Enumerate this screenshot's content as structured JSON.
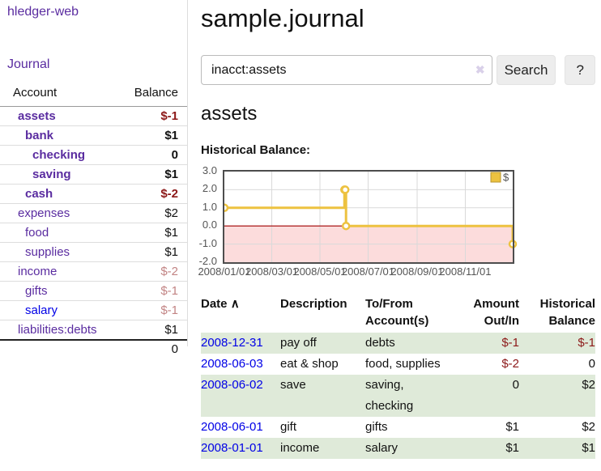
{
  "app": {
    "title": "hledger-web"
  },
  "sidebar": {
    "journal_label": "Journal",
    "accounts_table": {
      "headers": {
        "account": "Account",
        "balance": "Balance"
      },
      "rows": [
        {
          "name": "assets",
          "level": 1,
          "balance": "$-1",
          "matched": true
        },
        {
          "name": "bank",
          "level": 2,
          "balance": "$1",
          "matched": true
        },
        {
          "name": "checking",
          "level": 3,
          "balance": "0",
          "matched": true
        },
        {
          "name": "saving",
          "level": 3,
          "balance": "$1",
          "matched": true
        },
        {
          "name": "cash",
          "level": 2,
          "balance": "$-2",
          "matched": true
        },
        {
          "name": "expenses",
          "level": 1,
          "balance": "$2",
          "matched": false
        },
        {
          "name": "food",
          "level": 2,
          "balance": "$1",
          "matched": false
        },
        {
          "name": "supplies",
          "level": 2,
          "balance": "$1",
          "matched": false
        },
        {
          "name": "income",
          "level": 1,
          "balance": "$-2",
          "matched": false
        },
        {
          "name": "gifts",
          "level": 2,
          "balance": "$-1",
          "matched": false
        },
        {
          "name": "salary",
          "level": 2,
          "balance": "$-1",
          "matched": false,
          "visited": false
        },
        {
          "name": "liabilities:debts",
          "level": 1,
          "balance": "$1",
          "matched": false
        }
      ],
      "total": "0"
    }
  },
  "header": {
    "title": "sample.journal"
  },
  "search": {
    "value": "inacct:assets",
    "clear_icon": "✖",
    "button_label": "Search",
    "help_label": "?"
  },
  "register": {
    "heading": "assets",
    "chart_label": "Historical Balance:",
    "table": {
      "headers": {
        "date": "Date",
        "sort_indicator": "∧",
        "description": "Description",
        "accounts": "To/From Account(s)",
        "amount": "Amount Out/In",
        "balance": "Historical Balance"
      },
      "rows": [
        {
          "date": "2008-12-31",
          "description": "pay off",
          "accounts": "debts",
          "amount": "$-1",
          "balance": "$-1"
        },
        {
          "date": "2008-06-03",
          "description": "eat & shop",
          "accounts": "food, supplies",
          "amount": "$-2",
          "balance": "0"
        },
        {
          "date": "2008-06-02",
          "description": "save",
          "accounts": "saving, checking",
          "amount": "0",
          "balance": "$2"
        },
        {
          "date": "2008-06-01",
          "description": "gift",
          "accounts": "gifts",
          "amount": "$1",
          "balance": "$2"
        },
        {
          "date": "2008-01-01",
          "description": "income",
          "accounts": "salary",
          "amount": "$1",
          "balance": "$1"
        }
      ]
    }
  },
  "chart_data": {
    "type": "line",
    "step": true,
    "title": "Historical Balance:",
    "series": [
      {
        "name": "$",
        "color": "#edc240",
        "points": [
          {
            "date": "2008-01-01",
            "day": 0,
            "value": 1
          },
          {
            "date": "2008-06-01",
            "day": 152,
            "value": 2
          },
          {
            "date": "2008-06-02",
            "day": 153,
            "value": 2
          },
          {
            "date": "2008-06-03",
            "day": 154,
            "value": 0
          },
          {
            "date": "2008-12-31",
            "day": 365,
            "value": -1
          }
        ]
      }
    ],
    "x_ticks": [
      {
        "day": 0,
        "label": "2008/01/01"
      },
      {
        "day": 60,
        "label": "2008/03/01"
      },
      {
        "day": 121,
        "label": "2008/05/01"
      },
      {
        "day": 182,
        "label": "2008/07/01"
      },
      {
        "day": 244,
        "label": "2008/09/01"
      },
      {
        "day": 305,
        "label": "2008/11/01"
      }
    ],
    "y_ticks": [
      {
        "value": 3,
        "label": "3.0"
      },
      {
        "value": 2,
        "label": "2.0"
      },
      {
        "value": 1,
        "label": "1.0"
      },
      {
        "value": 0,
        "label": "0.0"
      },
      {
        "value": -1,
        "label": "-1.0"
      },
      {
        "value": -2,
        "label": "-2.0"
      }
    ],
    "ylim": [
      -2,
      3
    ],
    "xlim_days": [
      0,
      365
    ],
    "grid": true,
    "negative_region_shaded": true,
    "legend": {
      "label": "$",
      "position": "top-right"
    }
  },
  "colors": {
    "accent_purple": "#5a2ca0",
    "link_blue": "#0000e6",
    "negative": "#8c1818",
    "negative_dim": "#c28484",
    "row_shade_green": "#dfead9",
    "series_gold": "#edc240",
    "negative_region_pink": "#fcdcdc",
    "zero_line_red": "#a00000",
    "plot_border": "#4d4d4d"
  }
}
